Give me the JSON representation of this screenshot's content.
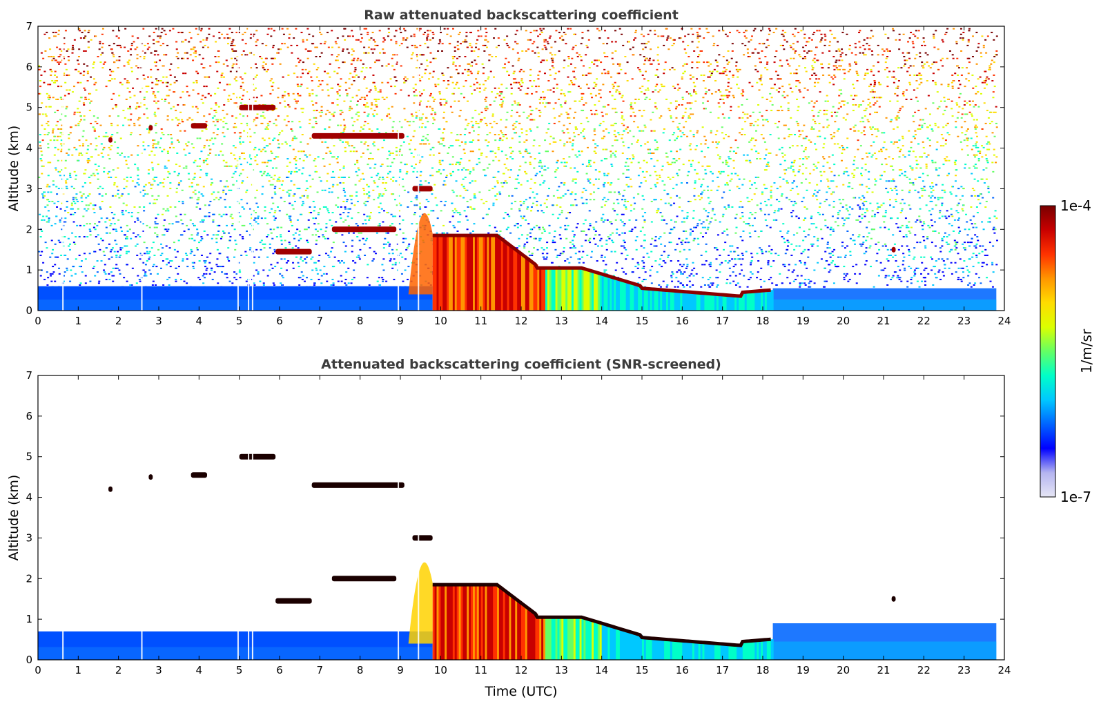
{
  "chart_data": [
    {
      "type": "heatmap",
      "title": "Raw attenuated backscattering coefficient",
      "xlabel": "",
      "ylabel": "Altitude (km)",
      "xlim": [
        0,
        24
      ],
      "ylim": [
        0,
        7
      ],
      "x_ticks": [
        "0",
        "1",
        "2",
        "3",
        "4",
        "5",
        "6",
        "7",
        "8",
        "9",
        "10",
        "11",
        "12",
        "13",
        "14",
        "15",
        "16",
        "17",
        "18",
        "19",
        "20",
        "21",
        "22",
        "23",
        "24"
      ],
      "y_ticks": [
        "0",
        "1",
        "2",
        "3",
        "4",
        "5",
        "6",
        "7"
      ],
      "features": {
        "boundary_layer_top_km": 0.6,
        "noise": "dense random noise above boundary layer, increasing with altitude",
        "cloud_layers": [
          {
            "t_start": 1.75,
            "t_end": 1.85,
            "alt_km": 4.2
          },
          {
            "t_start": 2.75,
            "t_end": 2.85,
            "alt_km": 4.5
          },
          {
            "t_start": 3.8,
            "t_end": 4.2,
            "alt_km": 4.55
          },
          {
            "t_start": 5.0,
            "t_end": 5.9,
            "alt_km": 5.0
          },
          {
            "t_start": 6.8,
            "t_end": 9.1,
            "alt_km": 4.3
          },
          {
            "t_start": 5.9,
            "t_end": 6.8,
            "alt_km": 1.45
          },
          {
            "t_start": 7.3,
            "t_end": 8.9,
            "alt_km": 2.0
          },
          {
            "t_start": 9.3,
            "t_end": 9.8,
            "alt_km": 3.0
          },
          {
            "t_start": 9.8,
            "t_end": 18.25,
            "alt_km": "descending 1.9 to 0.5"
          },
          {
            "t_start": 21.2,
            "t_end": 21.3,
            "alt_km": 1.5
          }
        ]
      }
    },
    {
      "type": "heatmap",
      "title": "Attenuated backscattering coefficient (SNR-screened)",
      "xlabel": "Time (UTC)",
      "ylabel": "Altitude (km)",
      "xlim": [
        0,
        24
      ],
      "ylim": [
        0,
        7
      ],
      "x_ticks": [
        "0",
        "1",
        "2",
        "3",
        "4",
        "5",
        "6",
        "7",
        "8",
        "9",
        "10",
        "11",
        "12",
        "13",
        "14",
        "15",
        "16",
        "17",
        "18",
        "19",
        "20",
        "21",
        "22",
        "23",
        "24"
      ],
      "y_ticks": [
        "0",
        "1",
        "2",
        "3",
        "4",
        "5",
        "6",
        "7"
      ],
      "features": {
        "boundary_layer_top_km": 0.7,
        "noise": "screened out (white)",
        "boundary_layer_after_18h_km": 0.9
      }
    }
  ],
  "colorbar": {
    "label": "1/m/sr",
    "max_label": "1e-4",
    "min_label": "1e-7",
    "scale": "log",
    "colormap": [
      "#e6e6f5",
      "#b4b4f0",
      "#0000ff",
      "#0064ff",
      "#00c8ff",
      "#00ffc8",
      "#64ff64",
      "#dcff00",
      "#ffdc00",
      "#ff9600",
      "#ff3200",
      "#c80000",
      "#780000"
    ]
  }
}
